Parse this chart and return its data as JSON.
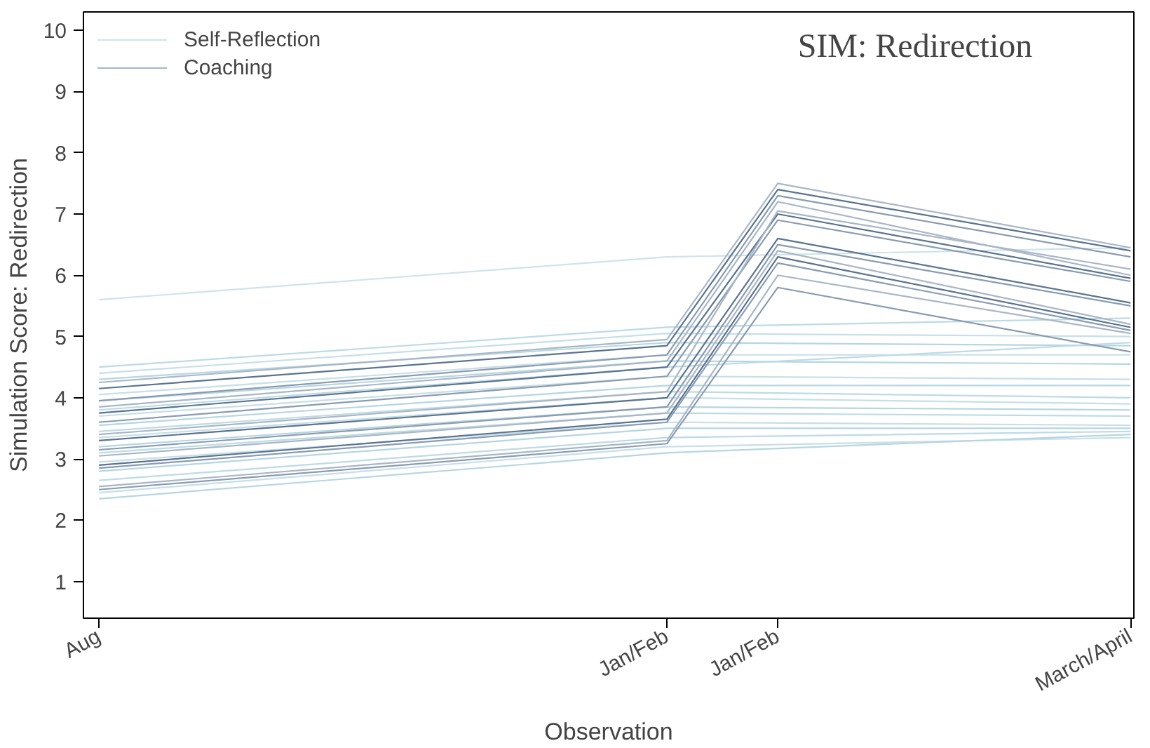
{
  "chart_data": {
    "type": "line",
    "title": "SIM: Redirection",
    "xlabel": "Observation",
    "ylabel": "Simulation Score: Redirection",
    "categories": [
      "Aug",
      "Jan/Feb",
      "Jan/Feb",
      "March/April"
    ],
    "ylim": [
      0.4,
      10.3
    ],
    "yticks": [
      1,
      2,
      3,
      4,
      5,
      6,
      7,
      8,
      9,
      10
    ],
    "grid": false,
    "legend": "top left",
    "marker": "none",
    "line_style": "solid",
    "series": [
      {
        "name": "Self-Reflection",
        "color": "#cfe3ea",
        "values": [
          5.6,
          6.3,
          null,
          6.45
        ]
      },
      {
        "color": "#bcdbe5",
        "values": [
          4.5,
          5.15,
          null,
          5.3
        ]
      },
      {
        "color": "#c6dfe8",
        "values": [
          4.4,
          5.05,
          null,
          5.0
        ]
      },
      {
        "color": "#b5d6e2",
        "values": [
          4.3,
          4.9,
          null,
          4.85
        ]
      },
      {
        "color": "#c6dfe8",
        "values": [
          4.05,
          4.7,
          null,
          4.7
        ]
      },
      {
        "color": "#b5d6e2",
        "values": [
          3.95,
          4.6,
          null,
          4.55
        ]
      },
      {
        "color": "#bcdbe5",
        "values": [
          3.8,
          4.5,
          null,
          4.9
        ]
      },
      {
        "color": "#c6dfe8",
        "values": [
          3.7,
          4.35,
          null,
          4.3
        ]
      },
      {
        "color": "#b5d6e2",
        "values": [
          3.55,
          4.2,
          null,
          4.2
        ]
      },
      {
        "color": "#bcdbe5",
        "values": [
          3.45,
          4.1,
          null,
          4.0
        ]
      },
      {
        "color": "#c6dfe8",
        "values": [
          3.35,
          4.0,
          null,
          3.9
        ]
      },
      {
        "color": "#b5d6e2",
        "values": [
          3.2,
          3.85,
          null,
          3.8
        ]
      },
      {
        "color": "#bcdbe5",
        "values": [
          3.1,
          3.75,
          null,
          3.7
        ]
      },
      {
        "color": "#c6dfe8",
        "values": [
          2.95,
          3.6,
          null,
          3.55
        ]
      },
      {
        "color": "#b5d6e2",
        "values": [
          2.8,
          3.5,
          null,
          3.5
        ]
      },
      {
        "color": "#bcdbe5",
        "values": [
          2.65,
          3.35,
          null,
          3.45
        ]
      },
      {
        "color": "#c6dfe8",
        "values": [
          2.45,
          3.2,
          null,
          3.35
        ]
      },
      {
        "color": "#b5d6e2",
        "values": [
          2.35,
          3.1,
          null,
          3.4
        ]
      },
      {
        "name": "Coaching",
        "color": "#a9b6c6",
        "values": [
          4.25,
          4.95,
          7.5,
          6.45
        ]
      },
      {
        "color": "#5a7391",
        "values": [
          4.15,
          4.85,
          7.4,
          6.4
        ]
      },
      {
        "color": "#8a9bb0",
        "values": [
          3.95,
          4.7,
          7.3,
          6.3
        ]
      },
      {
        "color": "#a9b6c6",
        "values": [
          3.85,
          4.6,
          7.2,
          6.0
        ]
      },
      {
        "color": "#5a7391",
        "values": [
          3.75,
          4.5,
          7.0,
          5.95
        ]
      },
      {
        "color": "#8a9bb0",
        "values": [
          3.6,
          4.35,
          6.9,
          5.9
        ]
      },
      {
        "color": "#a9b6c6",
        "values": [
          3.4,
          4.1,
          7.05,
          6.1
        ]
      },
      {
        "color": "#5a7391",
        "values": [
          3.3,
          4.0,
          6.6,
          5.55
        ]
      },
      {
        "color": "#8a9bb0",
        "values": [
          3.15,
          3.85,
          6.5,
          5.5
        ]
      },
      {
        "color": "#a9b6c6",
        "values": [
          3.05,
          3.75,
          6.4,
          5.2
        ]
      },
      {
        "color": "#5a7391",
        "values": [
          2.9,
          3.65,
          6.3,
          5.15
        ]
      },
      {
        "color": "#8a9bb0",
        "values": [
          2.85,
          3.6,
          6.2,
          5.1
        ]
      },
      {
        "color": "#a9b6c6",
        "values": [
          2.55,
          3.3,
          6.0,
          5.05
        ]
      },
      {
        "color": "#8a9bb0",
        "values": [
          2.5,
          3.25,
          5.8,
          4.75
        ]
      }
    ]
  }
}
